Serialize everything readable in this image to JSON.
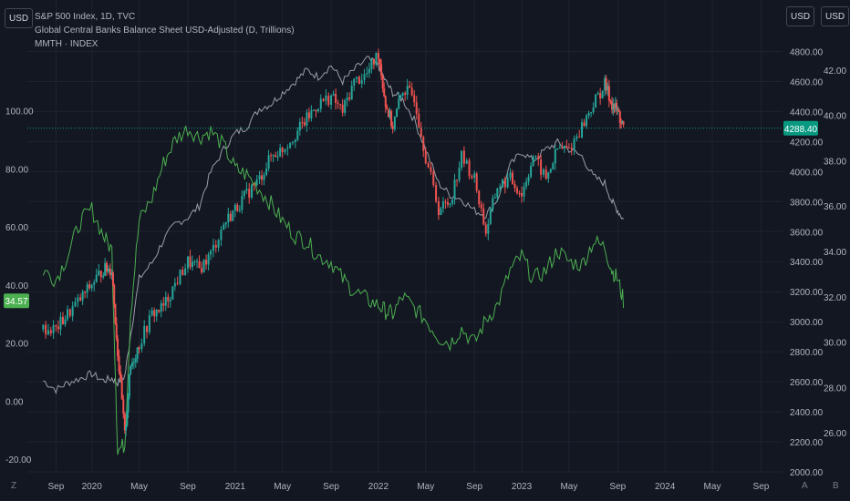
{
  "header": {
    "title": "S&P 500 Index, 1D, TVC",
    "line2": "Global Central Banks Balance Sheet USD-Adjusted (D, Trillions)",
    "line3": "MMTH · INDEX"
  },
  "currency_buttons": {
    "left": "USD",
    "right_inner": "USD",
    "right_outer": "USD"
  },
  "corner_buttons": {
    "bottom_left": "Z",
    "bottom_right_a": "A",
    "bottom_right_b": "B"
  },
  "colors": {
    "background": "#131722",
    "grid": "#1f2330",
    "text": "#b2b5be",
    "sp_up": "#26a69a",
    "sp_down": "#ef5350",
    "green_line": "#4caf50",
    "gray_line": "#b2b5be",
    "price_tag": "#089981",
    "mmth_tag": "#4caf50"
  },
  "chart_data": {
    "type": "line",
    "x_axis": {
      "ticks": [
        "Sep",
        "2020",
        "May",
        "Sep",
        "2021",
        "May",
        "Sep",
        "2022",
        "May",
        "Sep",
        "2023",
        "May",
        "Sep",
        "2024",
        "May",
        "Sep"
      ]
    },
    "left_axis": {
      "title": "MMTH · INDEX",
      "range": [
        -25,
        120
      ],
      "ticks": [
        "100.00",
        "80.00",
        "60.00",
        "40.00",
        "20.00",
        "0.00",
        "-20.00"
      ]
    },
    "right_price_axis": {
      "title": "S&P 500",
      "range": [
        2000,
        4900
      ],
      "ticks": [
        "4800.00",
        "4600.00",
        "4400.00",
        "4200.00",
        "4000.00",
        "3800.00",
        "3600.00",
        "3400.00",
        "3200.00",
        "3000.00",
        "2800.00",
        "2600.00",
        "2400.00",
        "2200.00",
        "2000.00"
      ]
    },
    "right_balance_axis": {
      "title": "Global Central Banks Balance Sheet (Trillions)",
      "range": [
        25,
        43
      ],
      "ticks": [
        "42.00",
        "40.00",
        "38.00",
        "36.00",
        "34.00",
        "32.00",
        "30.00",
        "28.00",
        "26.00"
      ]
    },
    "last_values": {
      "sp500": "4288.40",
      "mmth": "34.57"
    },
    "series": [
      {
        "name": "S&P 500 Index, 1D, TVC",
        "axis": "price",
        "style": "candles",
        "x": [
          2019.66,
          2019.75,
          2019.83,
          2019.92,
          2020.0,
          2020.08,
          2020.14,
          2020.18,
          2020.23,
          2020.27,
          2020.33,
          2020.42,
          2020.5,
          2020.58,
          2020.67,
          2020.75,
          2020.83,
          2020.92,
          2021.0,
          2021.08,
          2021.17,
          2021.25,
          2021.33,
          2021.42,
          2021.5,
          2021.58,
          2021.67,
          2021.75,
          2021.83,
          2021.92,
          2022.0,
          2022.05,
          2022.1,
          2022.17,
          2022.25,
          2022.33,
          2022.42,
          2022.5,
          2022.58,
          2022.67,
          2022.75,
          2022.83,
          2022.92,
          2023.0,
          2023.08,
          2023.17,
          2023.25,
          2023.33,
          2023.42,
          2023.5,
          2023.58,
          2023.63,
          2023.67,
          2023.71
        ],
        "y": [
          2950,
          2950,
          3050,
          3150,
          3250,
          3350,
          3350,
          2800,
          2240,
          2700,
          2850,
          3050,
          3100,
          3250,
          3400,
          3350,
          3450,
          3650,
          3750,
          3850,
          3950,
          4100,
          4150,
          4250,
          4350,
          4450,
          4500,
          4400,
          4600,
          4650,
          4790,
          4450,
          4300,
          4550,
          4500,
          4100,
          3750,
          3800,
          4100,
          3950,
          3600,
          3900,
          3950,
          3850,
          4100,
          3950,
          4150,
          4150,
          4300,
          4450,
          4580,
          4450,
          4400,
          4288
        ]
      },
      {
        "name": "Global Central Banks Balance Sheet USD-Adjusted",
        "axis": "balance",
        "style": "line",
        "x": [
          2019.66,
          2019.75,
          2019.83,
          2019.92,
          2020.0,
          2020.08,
          2020.14,
          2020.18,
          2020.23,
          2020.27,
          2020.33,
          2020.42,
          2020.5,
          2020.58,
          2020.67,
          2020.75,
          2020.83,
          2020.92,
          2021.0,
          2021.08,
          2021.17,
          2021.25,
          2021.33,
          2021.42,
          2021.5,
          2021.58,
          2021.67,
          2021.75,
          2021.83,
          2021.92,
          2022.0,
          2022.05,
          2022.1,
          2022.17,
          2022.25,
          2022.33,
          2022.42,
          2022.5,
          2022.58,
          2022.67,
          2022.75,
          2022.83,
          2022.92,
          2023.0,
          2023.08,
          2023.17,
          2023.25,
          2023.33,
          2023.42,
          2023.5,
          2023.58,
          2023.63,
          2023.67,
          2023.71
        ],
        "y": [
          28.3,
          27.9,
          28.2,
          28.4,
          28.6,
          28.3,
          28.4,
          28.2,
          28.5,
          30.3,
          32.8,
          33.5,
          34.5,
          35.2,
          35.5,
          36.0,
          37.5,
          38.5,
          39.2,
          39.5,
          40.3,
          40.5,
          41.0,
          41.5,
          42.0,
          41.7,
          42.2,
          41.5,
          42.0,
          42.5,
          42.2,
          41.5,
          41.0,
          40.7,
          39.8,
          38.5,
          37.0,
          36.5,
          36.3,
          35.8,
          35.6,
          36.3,
          37.8,
          38.4,
          38.0,
          38.5,
          38.8,
          38.5,
          38.2,
          37.3,
          37.0,
          36.2,
          35.8,
          35.4
        ]
      },
      {
        "name": "MMTH · INDEX",
        "axis": "left",
        "style": "line",
        "x": [
          2019.66,
          2019.75,
          2019.83,
          2019.92,
          2020.0,
          2020.08,
          2020.14,
          2020.18,
          2020.23,
          2020.27,
          2020.33,
          2020.42,
          2020.5,
          2020.58,
          2020.67,
          2020.75,
          2020.83,
          2020.92,
          2021.0,
          2021.08,
          2021.17,
          2021.25,
          2021.33,
          2021.42,
          2021.5,
          2021.58,
          2021.67,
          2021.75,
          2021.83,
          2021.92,
          2022.0,
          2022.05,
          2022.1,
          2022.17,
          2022.25,
          2022.33,
          2022.42,
          2022.5,
          2022.58,
          2022.67,
          2022.75,
          2022.83,
          2022.92,
          2023.0,
          2023.08,
          2023.17,
          2023.25,
          2023.33,
          2023.42,
          2023.5,
          2023.58,
          2023.63,
          2023.67,
          2023.71
        ],
        "y": [
          45,
          42,
          50,
          62,
          66,
          57,
          52,
          -17,
          -15,
          30,
          62,
          70,
          82,
          90,
          94,
          91,
          93,
          88,
          80,
          78,
          73,
          68,
          62,
          57,
          55,
          50,
          48,
          42,
          38,
          35,
          33,
          31,
          30,
          36,
          32,
          28,
          22,
          20,
          25,
          20,
          28,
          33,
          45,
          50,
          42,
          45,
          52,
          48,
          47,
          55,
          53,
          45,
          42,
          34.57
        ]
      }
    ]
  }
}
